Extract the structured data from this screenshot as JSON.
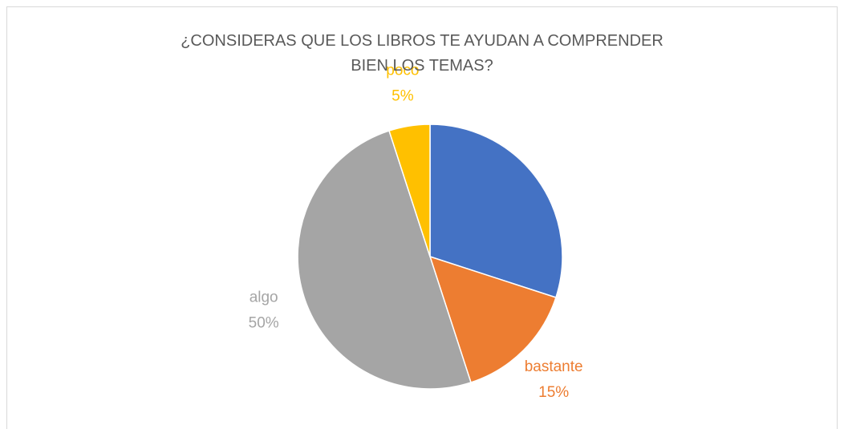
{
  "chart_data": {
    "type": "pie",
    "title": "¿CONSIDERAS QUE LOS LIBROS TE AYUDAN A COMPRENDER BIEN LOS TEMAS?",
    "categories": [
      null,
      "bastante",
      "algo",
      "poco"
    ],
    "values": [
      30,
      15,
      50,
      5
    ],
    "value_labels": [
      null,
      "15%",
      "50%",
      "5%"
    ],
    "colors": [
      "#4472c4",
      "#ed7d31",
      "#a5a5a5",
      "#ffc000"
    ]
  }
}
